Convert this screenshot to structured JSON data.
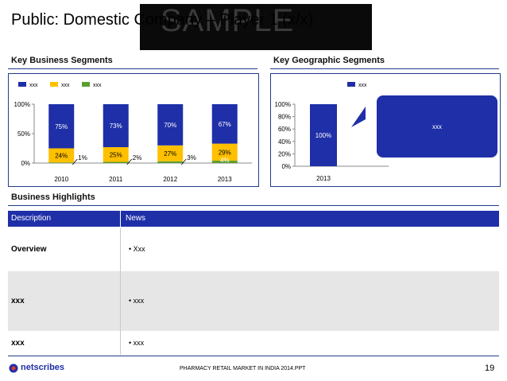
{
  "slide": {
    "title": "Public: Domestic Company – Player 1 (x/x)",
    "watermark": "SAMPLE",
    "page_number": "19",
    "footer_text": "PHARMACY RETAIL MARKET IN INDIA 2014.PPT",
    "logo_text": "netscribes"
  },
  "sections": {
    "business_segments": "Key Business Segments",
    "geographic_segments": "Key Geographic Segments",
    "business_highlights": "Business Highlights"
  },
  "colors": {
    "navy": "#1f2fa8",
    "yellow": "#ffc000",
    "green": "#5a9e2f",
    "rule": "#1f3d8c",
    "row_alt": "#e6e6e6"
  },
  "chart_data": [
    {
      "type": "bar",
      "stacked": true,
      "percent": true,
      "categories": [
        "2010",
        "2011",
        "2012",
        "2013"
      ],
      "series": [
        {
          "name": "xxx",
          "color": "#1f2fa8",
          "values": [
            75,
            73,
            70,
            67
          ],
          "labels": [
            "75%",
            "73%",
            "70%",
            "67%"
          ]
        },
        {
          "name": "xxx",
          "color": "#ffc000",
          "values": [
            24,
            25,
            27,
            29
          ],
          "labels": [
            "24%",
            "25%",
            "27%",
            "29%"
          ]
        },
        {
          "name": "xxx",
          "color": "#5a9e2f",
          "values": [
            1,
            2,
            3,
            4
          ],
          "labels": [
            "1%",
            "2%",
            "3%",
            "4%"
          ]
        }
      ],
      "ylim": [
        0,
        100
      ],
      "yticks": [
        "0%",
        "50%",
        "100%"
      ],
      "legend": "top-left"
    },
    {
      "type": "bar",
      "stacked": true,
      "percent": true,
      "categories": [
        "2013"
      ],
      "series": [
        {
          "name": "xxx",
          "color": "#1f2fa8",
          "values": [
            100
          ],
          "labels": [
            "100%"
          ]
        }
      ],
      "ylim": [
        0,
        100
      ],
      "yticks": [
        "0%",
        "20%",
        "40%",
        "60%",
        "80%",
        "100%"
      ],
      "legend": "top-right",
      "callout": "xxx"
    }
  ],
  "table": {
    "headers": [
      "Description",
      "News"
    ],
    "rows": [
      {
        "label": "Overview",
        "news": "• Xxx"
      },
      {
        "label": "xxx",
        "news": "• xxx"
      },
      {
        "label": "xxx",
        "news": "• xxx"
      }
    ]
  }
}
